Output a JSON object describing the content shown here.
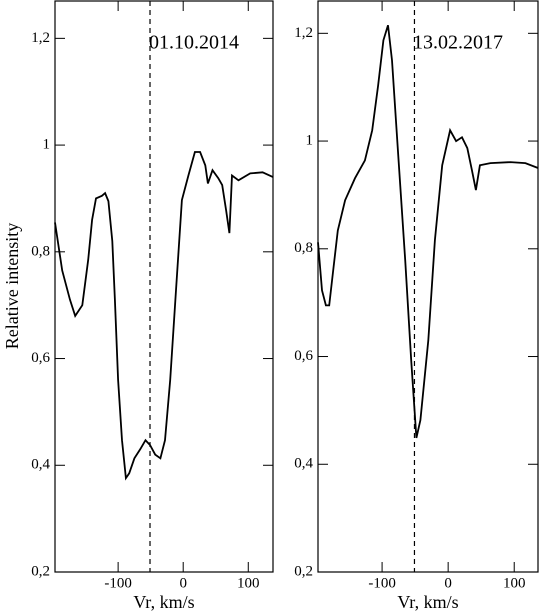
{
  "chart_data": [
    {
      "type": "line",
      "annotation": "01.10.2014",
      "x_label": "Vr, km/s",
      "y_label": "Relative intensity",
      "color": "#000000",
      "xlim": [
        -197,
        138
      ],
      "ylim": [
        0.2,
        1.27
      ],
      "xticks": [
        -100,
        0,
        100
      ],
      "yticks": [
        {
          "value": 0.2,
          "label": "0,2"
        },
        {
          "value": 0.4,
          "label": "0,4"
        },
        {
          "value": 0.6,
          "label": "0,6"
        },
        {
          "value": 0.8,
          "label": "0,8"
        },
        1,
        {
          "value": 1.2,
          "label": "1,2"
        }
      ],
      "reference_x": -51,
      "x": [
        -197,
        -186,
        -174,
        -166,
        -155,
        -146,
        -140,
        -134,
        -125,
        -120,
        -115,
        -109,
        -105,
        -100,
        -94,
        -88,
        -83,
        -75,
        -66,
        -58,
        -51,
        -43,
        -35,
        -28,
        -20,
        -11,
        -2,
        8,
        18,
        26,
        34,
        38,
        45,
        54,
        60,
        66,
        71,
        75,
        85,
        103,
        122,
        138
      ],
      "values": [
        0.855,
        0.765,
        0.71,
        0.68,
        0.7,
        0.785,
        0.86,
        0.9,
        0.905,
        0.91,
        0.895,
        0.82,
        0.71,
        0.56,
        0.447,
        0.376,
        0.385,
        0.413,
        0.43,
        0.447,
        0.438,
        0.42,
        0.413,
        0.447,
        0.56,
        0.728,
        0.897,
        0.943,
        0.987,
        0.987,
        0.962,
        0.928,
        0.953,
        0.938,
        0.925,
        0.878,
        0.835,
        0.943,
        0.934,
        0.947,
        0.949,
        0.94
      ]
    },
    {
      "type": "line",
      "annotation": "13.02.2017",
      "x_label": "Vr, km/s",
      "color": "#000000",
      "xlim": [
        -197,
        136
      ],
      "ylim": [
        0.2,
        1.26
      ],
      "xticks": [
        -100,
        0,
        100
      ],
      "yticks": [
        {
          "value": 0.2,
          "label": "0,2"
        },
        {
          "value": 0.4,
          "label": "0,4"
        },
        {
          "value": 0.6,
          "label": "0,6"
        },
        {
          "value": 0.8,
          "label": "0,8"
        },
        1,
        {
          "value": 1.2,
          "label": "1,2"
        }
      ],
      "reference_x": -51,
      "x": [
        -197,
        -191,
        -185,
        -180,
        -174,
        -167,
        -156,
        -141,
        -126,
        -115,
        -106,
        -98,
        -91,
        -85,
        -76,
        -65,
        -56,
        -48,
        -42,
        -30,
        -20,
        -9,
        3,
        12,
        21,
        29,
        36,
        42,
        48,
        64,
        94,
        117,
        136
      ],
      "values": [
        0.812,
        0.723,
        0.695,
        0.695,
        0.76,
        0.834,
        0.89,
        0.931,
        0.964,
        1.02,
        1.103,
        1.187,
        1.215,
        1.15,
        0.983,
        0.779,
        0.593,
        0.449,
        0.482,
        0.63,
        0.816,
        0.955,
        1.02,
        1.0,
        1.007,
        0.987,
        0.946,
        0.909,
        0.955,
        0.959,
        0.961,
        0.959,
        0.95
      ]
    }
  ]
}
